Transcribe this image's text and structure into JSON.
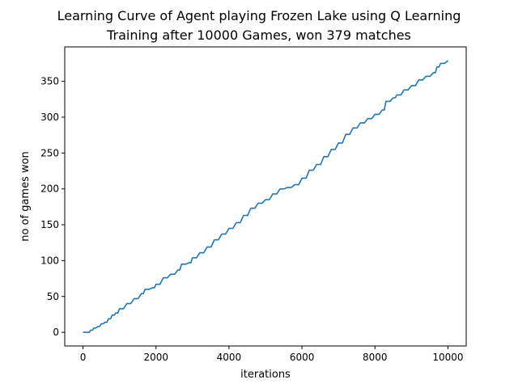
{
  "chart_data": {
    "type": "line",
    "title": "Learning Curve of Agent playing Frozen Lake using Q Learning",
    "subtitle": "Training after 10000 Games, won 379 matches",
    "xlabel": "iterations",
    "ylabel": "no of games won",
    "xlim": [
      -500,
      10500
    ],
    "ylim": [
      -19,
      398
    ],
    "xticks": [
      0,
      2000,
      4000,
      6000,
      8000,
      10000
    ],
    "yticks": [
      0,
      50,
      100,
      150,
      200,
      250,
      300,
      350
    ],
    "xtick_labels": [
      "0",
      "2000",
      "4000",
      "6000",
      "8000",
      "10000"
    ],
    "ytick_labels": [
      "0",
      "50",
      "100",
      "150",
      "200",
      "250",
      "300",
      "350"
    ],
    "grid": false,
    "line_color": "#1f77b4",
    "series": [
      {
        "x": [
          0,
          150,
          200,
          300,
          400,
          500,
          600,
          700,
          800,
          900,
          1000,
          1200,
          1400,
          1600,
          1700,
          1900,
          2000,
          2200,
          2400,
          2600,
          2700,
          2900,
          3000,
          3200,
          3400,
          3600,
          3800,
          4000,
          4200,
          4400,
          4600,
          4800,
          5000,
          5200,
          5400,
          5600,
          5800,
          6000,
          6200,
          6400,
          6600,
          6800,
          7000,
          7200,
          7400,
          7600,
          7800,
          8000,
          8200,
          8300,
          8500,
          8600,
          8800,
          9000,
          9200,
          9400,
          9600,
          9700,
          9800,
          10000
        ],
        "y": [
          0,
          0,
          3,
          6,
          8,
          12,
          14,
          19,
          24,
          27,
          33,
          40,
          47,
          54,
          60,
          62,
          67,
          76,
          81,
          87,
          95,
          97,
          104,
          111,
          119,
          129,
          137,
          145,
          153,
          163,
          173,
          180,
          185,
          193,
          200,
          202,
          206,
          215,
          226,
          234,
          245,
          255,
          264,
          276,
          285,
          292,
          298,
          304,
          310,
          322,
          327,
          331,
          338,
          344,
          352,
          357,
          362,
          370,
          375,
          379
        ]
      }
    ]
  }
}
